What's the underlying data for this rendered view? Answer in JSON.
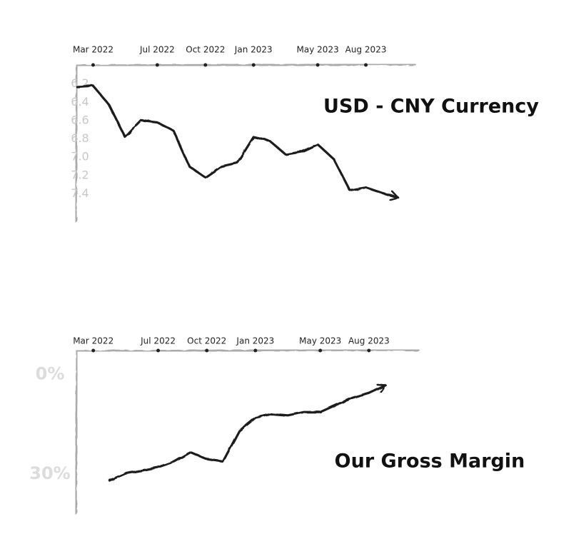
{
  "chart_data": [
    {
      "type": "line",
      "title": "USD - CNY Currency",
      "x": [
        "2022-02",
        "2022-03",
        "2022-04",
        "2022-05",
        "2022-06",
        "2022-07",
        "2022-08",
        "2022-09",
        "2022-10",
        "2022-11",
        "2022-12",
        "2023-01",
        "2023-02",
        "2023-03",
        "2023-04",
        "2023-05",
        "2023-06",
        "2023-07",
        "2023-08",
        "2023-09",
        "2023-10"
      ],
      "series": [
        {
          "name": "USD - CNY",
          "color": "#1a1a1a",
          "values": [
            6.23,
            6.22,
            6.43,
            6.78,
            6.6,
            6.62,
            6.71,
            7.1,
            7.22,
            7.1,
            7.06,
            6.78,
            6.82,
            6.97,
            6.94,
            6.86,
            7.02,
            7.36,
            7.33,
            7.39,
            7.44
          ]
        }
      ],
      "xlim": [
        "2022-02",
        "2023-11"
      ],
      "xticks": [
        {
          "value": "2022-03",
          "label": "Mar 2022"
        },
        {
          "value": "2022-07",
          "label": "Jul 2022"
        },
        {
          "value": "2022-10",
          "label": "Oct 2022"
        },
        {
          "value": "2023-01",
          "label": "Jan 2023"
        },
        {
          "value": "2023-05",
          "label": "May 2023"
        },
        {
          "value": "2023-08",
          "label": "Aug 2023"
        }
      ],
      "ylim": [
        6.0,
        7.7
      ],
      "y_reversed": true,
      "yticks": [
        6.2,
        6.4,
        6.6,
        6.8,
        {
          "value": 7.0,
          "label": "7.0"
        },
        7.2,
        7.4
      ]
    },
    {
      "type": "line",
      "title": "Our Gross Margin",
      "x": [
        "2022-04",
        "2022-05",
        "2022-06",
        "2022-07",
        "2022-08",
        "2022-09",
        "2022-10",
        "2022-11",
        "2022-12",
        "2023-01",
        "2023-02",
        "2023-03",
        "2023-04",
        "2023-05",
        "2023-06",
        "2023-07",
        "2023-08",
        "2023-09"
      ],
      "series": [
        {
          "name": "Gross Margin",
          "color": "#1a1a1a",
          "values": [
            31.9,
            29.8,
            28.9,
            27.9,
            26.2,
            23.4,
            25.5,
            26.2,
            17,
            13,
            11.9,
            12.3,
            11.3,
            11.3,
            9.1,
            7,
            5.5,
            3.2
          ]
        }
      ],
      "xlim": [
        "2022-02",
        "2023-11"
      ],
      "xticks": [
        {
          "value": "2022-03",
          "label": "Mar 2022"
        },
        {
          "value": "2022-07",
          "label": "Jul 2022"
        },
        {
          "value": "2022-10",
          "label": "Oct 2022"
        },
        {
          "value": "2023-01",
          "label": "Jan 2023"
        },
        {
          "value": "2023-05",
          "label": "May 2023"
        },
        {
          "value": "2023-08",
          "label": "Aug 2023"
        }
      ],
      "ylim": [
        -7,
        42
      ],
      "y_reversed": true,
      "yticks": [
        {
          "value": 0,
          "label": "0%"
        },
        {
          "value": 30,
          "label": "30%"
        }
      ]
    }
  ]
}
